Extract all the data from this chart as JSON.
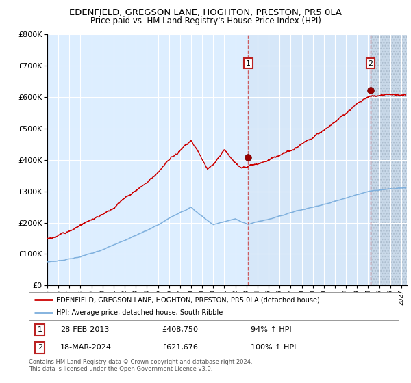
{
  "title": "EDENFIELD, GREGSON LANE, HOGHTON, PRESTON, PR5 0LA",
  "subtitle": "Price paid vs. HM Land Registry's House Price Index (HPI)",
  "red_label": "EDENFIELD, GREGSON LANE, HOGHTON, PRESTON, PR5 0LA (detached house)",
  "blue_label": "HPI: Average price, detached house, South Ribble",
  "transaction1": {
    "date": "28-FEB-2013",
    "price": 408750,
    "hpi_pct": "94%",
    "x_year": 2013.16
  },
  "transaction2": {
    "date": "18-MAR-2024",
    "price": 621676,
    "hpi_pct": "100%",
    "x_year": 2024.21
  },
  "footer1": "Contains HM Land Registry data © Crown copyright and database right 2024.",
  "footer2": "This data is licensed under the Open Government Licence v3.0.",
  "ylim": [
    0,
    800000
  ],
  "xlim_start": 1995.0,
  "xlim_end": 2027.5,
  "background_color": "#ffffff",
  "plot_bg_color": "#ddeeff",
  "red_color": "#cc0000",
  "blue_color": "#7aaddc",
  "grid_color": "#ffffff",
  "dashed_line_color": "#cc4444"
}
